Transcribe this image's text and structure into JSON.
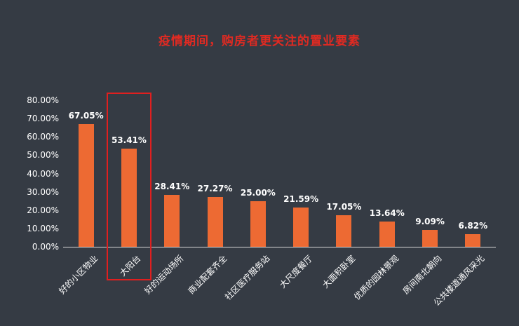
{
  "colors": {
    "background": "#353b44",
    "title": "#e02a22",
    "bar": "#ed6a33",
    "axis_text": "#ffffff",
    "axis_line": "#d9d9d9",
    "highlight_box": "#e01f1f"
  },
  "chart_data": {
    "type": "bar",
    "title": "疫情期间，购房者更关注的置业要素",
    "categories": [
      "好的小区物业",
      "大阳台",
      "好的运动场所",
      "商业配套齐全",
      "社区医疗服务站",
      "大尺度餐厅",
      "大面积卧室",
      "优质的园林景观",
      "房间南北朝向",
      "公共楼道通风采光"
    ],
    "values": [
      67.05,
      53.41,
      28.41,
      27.27,
      25.0,
      21.59,
      17.05,
      13.64,
      9.09,
      6.82
    ],
    "data_labels": [
      "67.05%",
      "53.41%",
      "28.41%",
      "27.27%",
      "25.00%",
      "21.59%",
      "17.05%",
      "13.64%",
      "9.09%",
      "6.82%"
    ],
    "xlabel": "",
    "ylabel": "",
    "ylim": [
      0,
      80
    ],
    "y_ticks": [
      "80.00%",
      "70.00%",
      "60.00%",
      "50.00%",
      "40.00%",
      "30.00%",
      "20.00%",
      "10.00%",
      "0.00%"
    ],
    "grid": false,
    "legend": false,
    "highlighted_category": "大阳台"
  }
}
